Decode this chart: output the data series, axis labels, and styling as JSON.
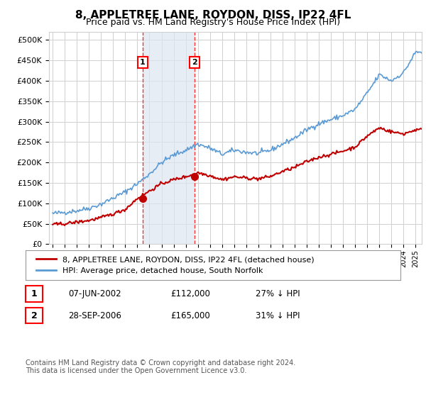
{
  "title": "8, APPLETREE LANE, ROYDON, DISS, IP22 4FL",
  "subtitle": "Price paid vs. HM Land Registry's House Price Index (HPI)",
  "ylabel_ticks": [
    "£0",
    "£50K",
    "£100K",
    "£150K",
    "£200K",
    "£250K",
    "£300K",
    "£350K",
    "£400K",
    "£450K",
    "£500K"
  ],
  "ytick_values": [
    0,
    50000,
    100000,
    150000,
    200000,
    250000,
    300000,
    350000,
    400000,
    450000,
    500000
  ],
  "ylim": [
    0,
    520000
  ],
  "xlim_start": 1995.0,
  "xlim_end": 2025.5,
  "purchase1_date": 2002.44,
  "purchase1_price": 112000,
  "purchase1_label": "1",
  "purchase2_date": 2006.74,
  "purchase2_price": 165000,
  "purchase2_label": "2",
  "hpi_color": "#5b9bd5",
  "price_color": "#c00000",
  "box_fill": "#dce6f1",
  "legend_entry1": "8, APPLETREE LANE, ROYDON, DISS, IP22 4FL (detached house)",
  "legend_entry2": "HPI: Average price, detached house, South Norfolk",
  "table_row1": [
    "1",
    "07-JUN-2002",
    "£112,000",
    "27% ↓ HPI"
  ],
  "table_row2": [
    "2",
    "28-SEP-2006",
    "£165,000",
    "31% ↓ HPI"
  ],
  "footer": "Contains HM Land Registry data © Crown copyright and database right 2024.\nThis data is licensed under the Open Government Licence v3.0.",
  "background_color": "#ffffff",
  "plot_bg_color": "#ffffff",
  "grid_color": "#d0d0d0"
}
